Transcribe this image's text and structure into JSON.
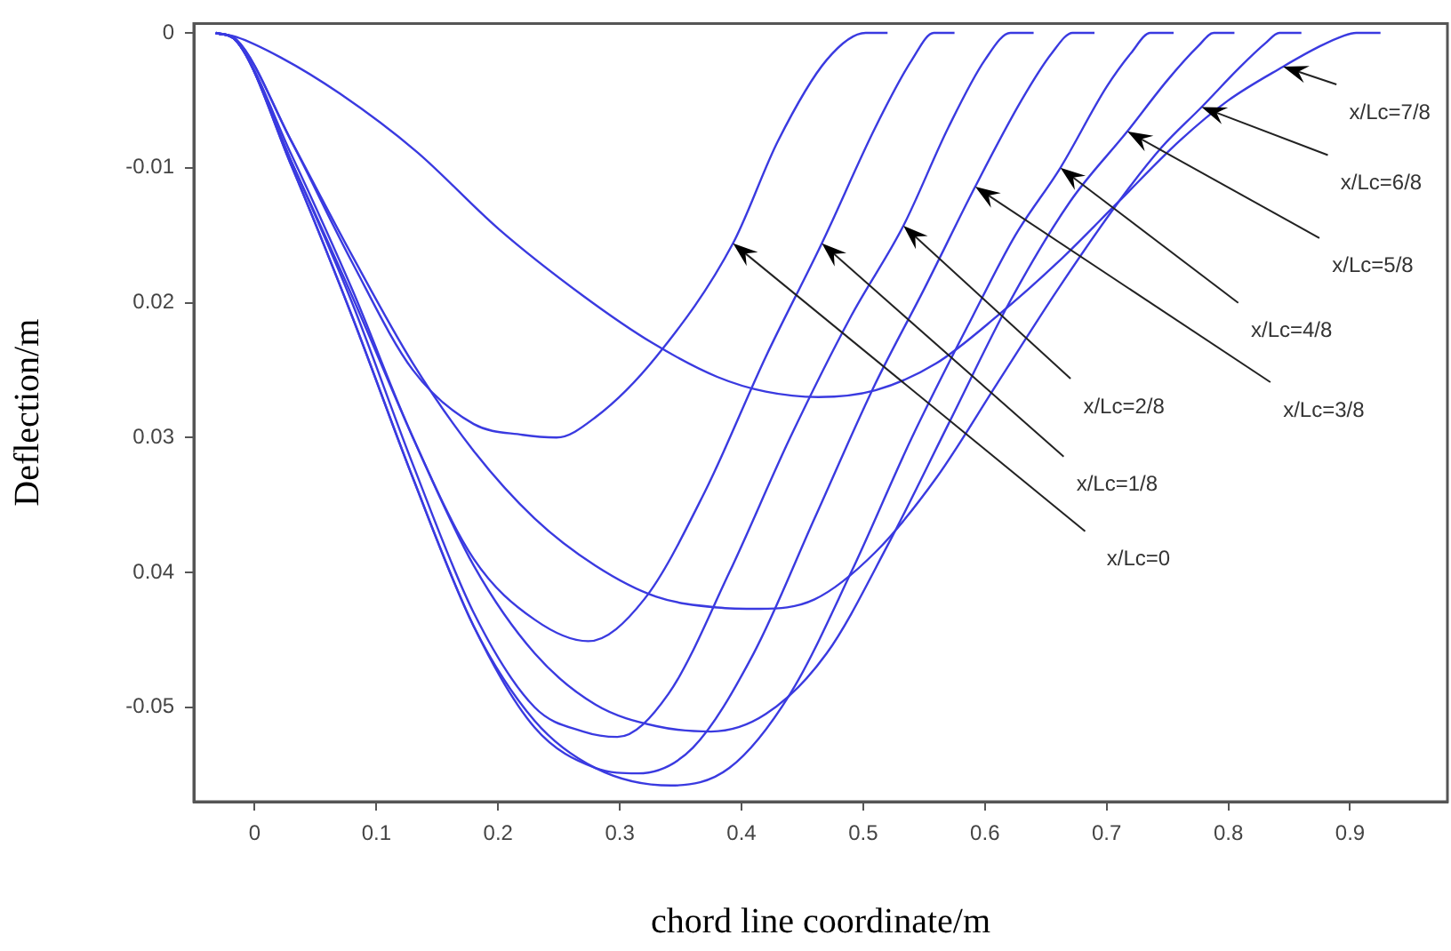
{
  "chart_data": {
    "type": "line",
    "xlabel": "chord line coordinate/m",
    "ylabel": "Deflection/m",
    "xlim": [
      -0.05,
      0.98
    ],
    "xticks": [
      0,
      0.1,
      0.2,
      0.3,
      0.4,
      0.5,
      0.6,
      0.7,
      0.8,
      0.9
    ],
    "ylim": [
      -0.057,
      0.0007
    ],
    "yticks": [
      0,
      -0.01,
      {
        "value": -0.02,
        "label": "0.02"
      },
      {
        "value": -0.03,
        "label": "0.03"
      },
      {
        "value": -0.04,
        "label": "0.04"
      },
      -0.05
    ],
    "grid": false,
    "legend": false,
    "marker": "none",
    "line_style": "solid",
    "series": [
      {
        "color": "#3a3ae0",
        "x": [
          -0.032,
          -0.015,
          0.03,
          0.08,
          0.13,
          0.18,
          0.22,
          0.248,
          0.28,
          0.33,
          0.393,
          0.43,
          0.47,
          0.502,
          0.52
        ],
        "values": [
          0,
          -0.0005,
          -0.008,
          -0.017,
          -0.025,
          -0.029,
          -0.0298,
          -0.03,
          -0.0285,
          -0.024,
          -0.0156,
          -0.008,
          -0.002,
          0,
          0
        ]
      },
      {
        "color": "#3a3ae0",
        "x": [
          -0.032,
          -0.015,
          0.03,
          0.08,
          0.13,
          0.18,
          0.23,
          0.274,
          0.32,
          0.37,
          0.42,
          0.466,
          0.51,
          0.54,
          0.558,
          0.575
        ],
        "values": [
          0,
          -0.0006,
          -0.009,
          -0.019,
          -0.03,
          -0.039,
          -0.0435,
          -0.0451,
          -0.042,
          -0.034,
          -0.024,
          -0.0156,
          -0.007,
          -0.002,
          0,
          0
        ]
      },
      {
        "color": "#3a3ae0",
        "x": [
          -0.032,
          -0.015,
          0.03,
          0.08,
          0.13,
          0.18,
          0.23,
          0.27,
          0.298,
          0.34,
          0.39,
          0.44,
          0.49,
          0.533,
          0.57,
          0.6,
          0.621,
          0.64
        ],
        "values": [
          0,
          -0.0006,
          -0.0095,
          -0.02,
          -0.032,
          -0.043,
          -0.05,
          -0.0518,
          -0.0522,
          -0.049,
          -0.04,
          -0.03,
          -0.021,
          -0.0143,
          -0.007,
          -0.002,
          0,
          0
        ]
      },
      {
        "color": "#3a3ae0",
        "x": [
          -0.032,
          -0.015,
          0.03,
          0.08,
          0.13,
          0.18,
          0.23,
          0.28,
          0.315,
          0.36,
          0.41,
          0.46,
          0.51,
          0.55,
          0.592,
          0.63,
          0.655,
          0.672,
          0.69
        ],
        "values": [
          0,
          -0.0006,
          -0.0098,
          -0.021,
          -0.033,
          -0.044,
          -0.0515,
          -0.0545,
          -0.0549,
          -0.053,
          -0.046,
          -0.036,
          -0.026,
          -0.019,
          -0.0114,
          -0.005,
          -0.0015,
          0,
          0
        ]
      },
      {
        "color": "#3a3ae0",
        "x": [
          -0.032,
          -0.015,
          0.03,
          0.08,
          0.13,
          0.18,
          0.23,
          0.28,
          0.342,
          0.39,
          0.44,
          0.49,
          0.54,
          0.59,
          0.625,
          0.662,
          0.7,
          0.72,
          0.736,
          0.755
        ],
        "values": [
          0,
          -0.0006,
          -0.0098,
          -0.021,
          -0.033,
          -0.044,
          -0.051,
          -0.0545,
          -0.0558,
          -0.0545,
          -0.049,
          -0.04,
          -0.03,
          -0.021,
          -0.015,
          -0.01,
          -0.004,
          -0.0015,
          0,
          0
        ]
      },
      {
        "color": "#3a3ae0",
        "x": [
          -0.032,
          -0.015,
          0.03,
          0.08,
          0.13,
          0.18,
          0.23,
          0.28,
          0.33,
          0.375,
          0.42,
          0.47,
          0.52,
          0.57,
          0.62,
          0.67,
          0.717,
          0.75,
          0.775,
          0.788,
          0.805
        ],
        "values": [
          0,
          -0.0006,
          -0.0095,
          -0.0195,
          -0.03,
          -0.0395,
          -0.046,
          -0.0498,
          -0.0514,
          -0.0518,
          -0.0505,
          -0.046,
          -0.038,
          -0.029,
          -0.02,
          -0.0125,
          -0.0073,
          -0.0035,
          -0.001,
          0,
          0
        ]
      },
      {
        "color": "#3a3ae0",
        "x": [
          -0.032,
          -0.015,
          0.03,
          0.08,
          0.13,
          0.18,
          0.23,
          0.28,
          0.33,
          0.38,
          0.415,
          0.46,
          0.51,
          0.56,
          0.61,
          0.66,
          0.71,
          0.745,
          0.778,
          0.81,
          0.83,
          0.842,
          0.86
        ],
        "values": [
          0,
          -0.0005,
          -0.008,
          -0.0165,
          -0.0245,
          -0.031,
          -0.036,
          -0.0395,
          -0.0418,
          -0.0426,
          -0.0427,
          -0.042,
          -0.0385,
          -0.033,
          -0.026,
          -0.019,
          -0.0125,
          -0.0085,
          -0.0055,
          -0.0025,
          -0.0008,
          0,
          0
        ]
      },
      {
        "color": "#3a3ae0",
        "x": [
          -0.032,
          -0.015,
          0.021,
          0.07,
          0.133,
          0.2,
          0.27,
          0.327,
          0.38,
          0.42,
          0.463,
          0.51,
          0.56,
          0.61,
          0.66,
          0.71,
          0.76,
          0.8,
          0.845,
          0.875,
          0.895,
          0.905,
          0.925
        ],
        "values": [
          0,
          -0.0003,
          -0.0018,
          -0.0045,
          -0.0088,
          -0.0145,
          -0.0195,
          -0.023,
          -0.0255,
          -0.0266,
          -0.027,
          -0.0265,
          -0.0245,
          -0.021,
          -0.017,
          -0.0125,
          -0.008,
          -0.005,
          -0.0025,
          -0.001,
          -0.0002,
          0,
          0
        ]
      }
    ],
    "annotations": [
      {
        "text": "x/Lc=0",
        "x": 0.393,
        "y": -0.0156
      },
      {
        "text": "x/Lc=1/8",
        "x": 0.466,
        "y": -0.0156
      },
      {
        "text": "x/Lc=2/8",
        "x": 0.533,
        "y": -0.0143
      },
      {
        "text": "x/Lc=3/8",
        "x": 0.592,
        "y": -0.0114
      },
      {
        "text": "x/Lc=4/8",
        "x": 0.662,
        "y": -0.01
      },
      {
        "text": "x/Lc=5/8",
        "x": 0.717,
        "y": -0.0073
      },
      {
        "text": "x/Lc=6/8",
        "x": 0.778,
        "y": -0.0055
      },
      {
        "text": "x/Lc=7/8",
        "x": 0.845,
        "y": -0.0025
      }
    ]
  }
}
